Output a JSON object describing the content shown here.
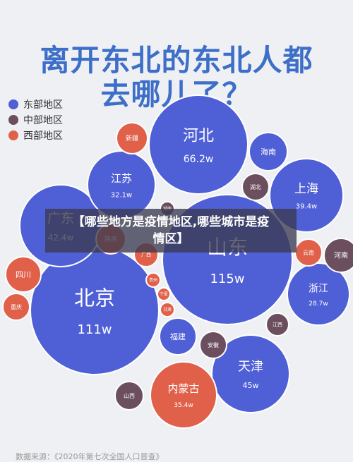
{
  "title": {
    "line1": "离开东北的东北人都",
    "line2": "去哪儿了？",
    "color": "#3e6fc8"
  },
  "legend": [
    {
      "label": "东部地区",
      "color": "#4f5fd6"
    },
    {
      "label": "中部地区",
      "color": "#6b4f5f"
    },
    {
      "label": "西部地区",
      "color": "#e0604a"
    }
  ],
  "banner": {
    "line1": "【哪些地方是疫情地区,哪些城市是疫",
    "line2": "情区】"
  },
  "source": "数据来源：《2020年第七次全国人口普查》",
  "chart_data": {
    "type": "bubble",
    "title": "离开东北的东北人都去哪儿了？",
    "unit": "w",
    "series": [
      {
        "name": "东部地区",
        "color": "#4f5fd6"
      },
      {
        "name": "中部地区",
        "color": "#6b4f5f"
      },
      {
        "name": "西部地区",
        "color": "#e0604a"
      }
    ],
    "bubbles": [
      {
        "name": "山东",
        "value": 115,
        "label": "115w",
        "region": "东部地区"
      },
      {
        "name": "北京",
        "value": 111,
        "label": "111w",
        "region": "东部地区"
      },
      {
        "name": "河北",
        "value": 66.2,
        "label": "66.2w",
        "region": "东部地区"
      },
      {
        "name": "天津",
        "value": 45,
        "label": "45w",
        "region": "东部地区"
      },
      {
        "name": "广东",
        "value": 42.4,
        "label": "42.4w",
        "region": "东部地区"
      },
      {
        "name": "上海",
        "value": 39.4,
        "label": "39.4w",
        "region": "东部地区"
      },
      {
        "name": "内蒙古",
        "value": 35.4,
        "label": "35.4w",
        "region": "西部地区"
      },
      {
        "name": "江苏",
        "value": 32.1,
        "label": "32.1w",
        "region": "东部地区"
      },
      {
        "name": "浙江",
        "value": 28.7,
        "label": "28.7w",
        "region": "东部地区"
      },
      {
        "name": "海南",
        "value": null,
        "label": "",
        "region": "东部地区"
      },
      {
        "name": "福建",
        "value": null,
        "label": "",
        "region": "东部地区"
      },
      {
        "name": "湖北",
        "value": null,
        "label": "",
        "region": "中部地区"
      },
      {
        "name": "河南",
        "value": null,
        "label": "",
        "region": "中部地区"
      },
      {
        "name": "安徽",
        "value": null,
        "label": "",
        "region": "中部地区"
      },
      {
        "name": "江西",
        "value": null,
        "label": "",
        "region": "中部地区"
      },
      {
        "name": "山西",
        "value": null,
        "label": "",
        "region": "中部地区"
      },
      {
        "name": "湖南",
        "value": null,
        "label": "",
        "region": "中部地区"
      },
      {
        "name": "新疆",
        "value": null,
        "label": "",
        "region": "西部地区"
      },
      {
        "name": "四川",
        "value": null,
        "label": "",
        "region": "西部地区"
      },
      {
        "name": "重庆",
        "value": null,
        "label": "",
        "region": "西部地区"
      },
      {
        "name": "陕西",
        "value": null,
        "label": "",
        "region": "西部地区"
      },
      {
        "name": "云南",
        "value": null,
        "label": "",
        "region": "西部地区"
      },
      {
        "name": "广西",
        "value": null,
        "label": "",
        "region": "西部地区"
      },
      {
        "name": "贵州",
        "value": null,
        "label": "",
        "region": "西部地区"
      },
      {
        "name": "宁夏",
        "value": null,
        "label": "",
        "region": "西部地区"
      },
      {
        "name": "甘肃",
        "value": null,
        "label": "",
        "region": "西部地区"
      }
    ]
  }
}
